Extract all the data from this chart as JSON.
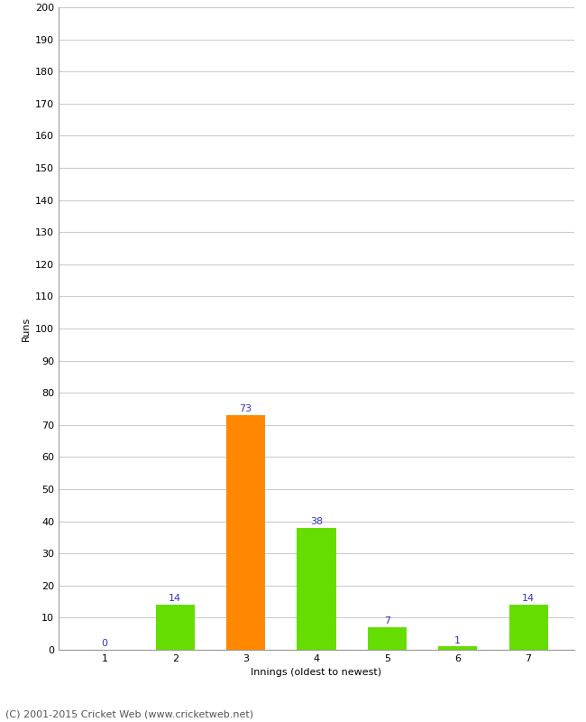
{
  "categories": [
    "1",
    "2",
    "3",
    "4",
    "5",
    "6",
    "7"
  ],
  "values": [
    0,
    14,
    73,
    38,
    7,
    1,
    14
  ],
  "bar_colors": [
    "#66dd00",
    "#66dd00",
    "#ff8800",
    "#66dd00",
    "#66dd00",
    "#66dd00",
    "#66dd00"
  ],
  "xlabel": "Innings (oldest to newest)",
  "ylabel": "Runs",
  "ylim": [
    0,
    200
  ],
  "yticks": [
    0,
    10,
    20,
    30,
    40,
    50,
    60,
    70,
    80,
    90,
    100,
    110,
    120,
    130,
    140,
    150,
    160,
    170,
    180,
    190,
    200
  ],
  "label_color": "#3333cc",
  "footer": "(C) 2001-2015 Cricket Web (www.cricketweb.net)",
  "background_color": "#ffffff",
  "grid_color": "#cccccc",
  "bar_width": 0.55,
  "label_fontsize": 8,
  "axis_fontsize": 8,
  "ylabel_fontsize": 8,
  "footer_fontsize": 8
}
